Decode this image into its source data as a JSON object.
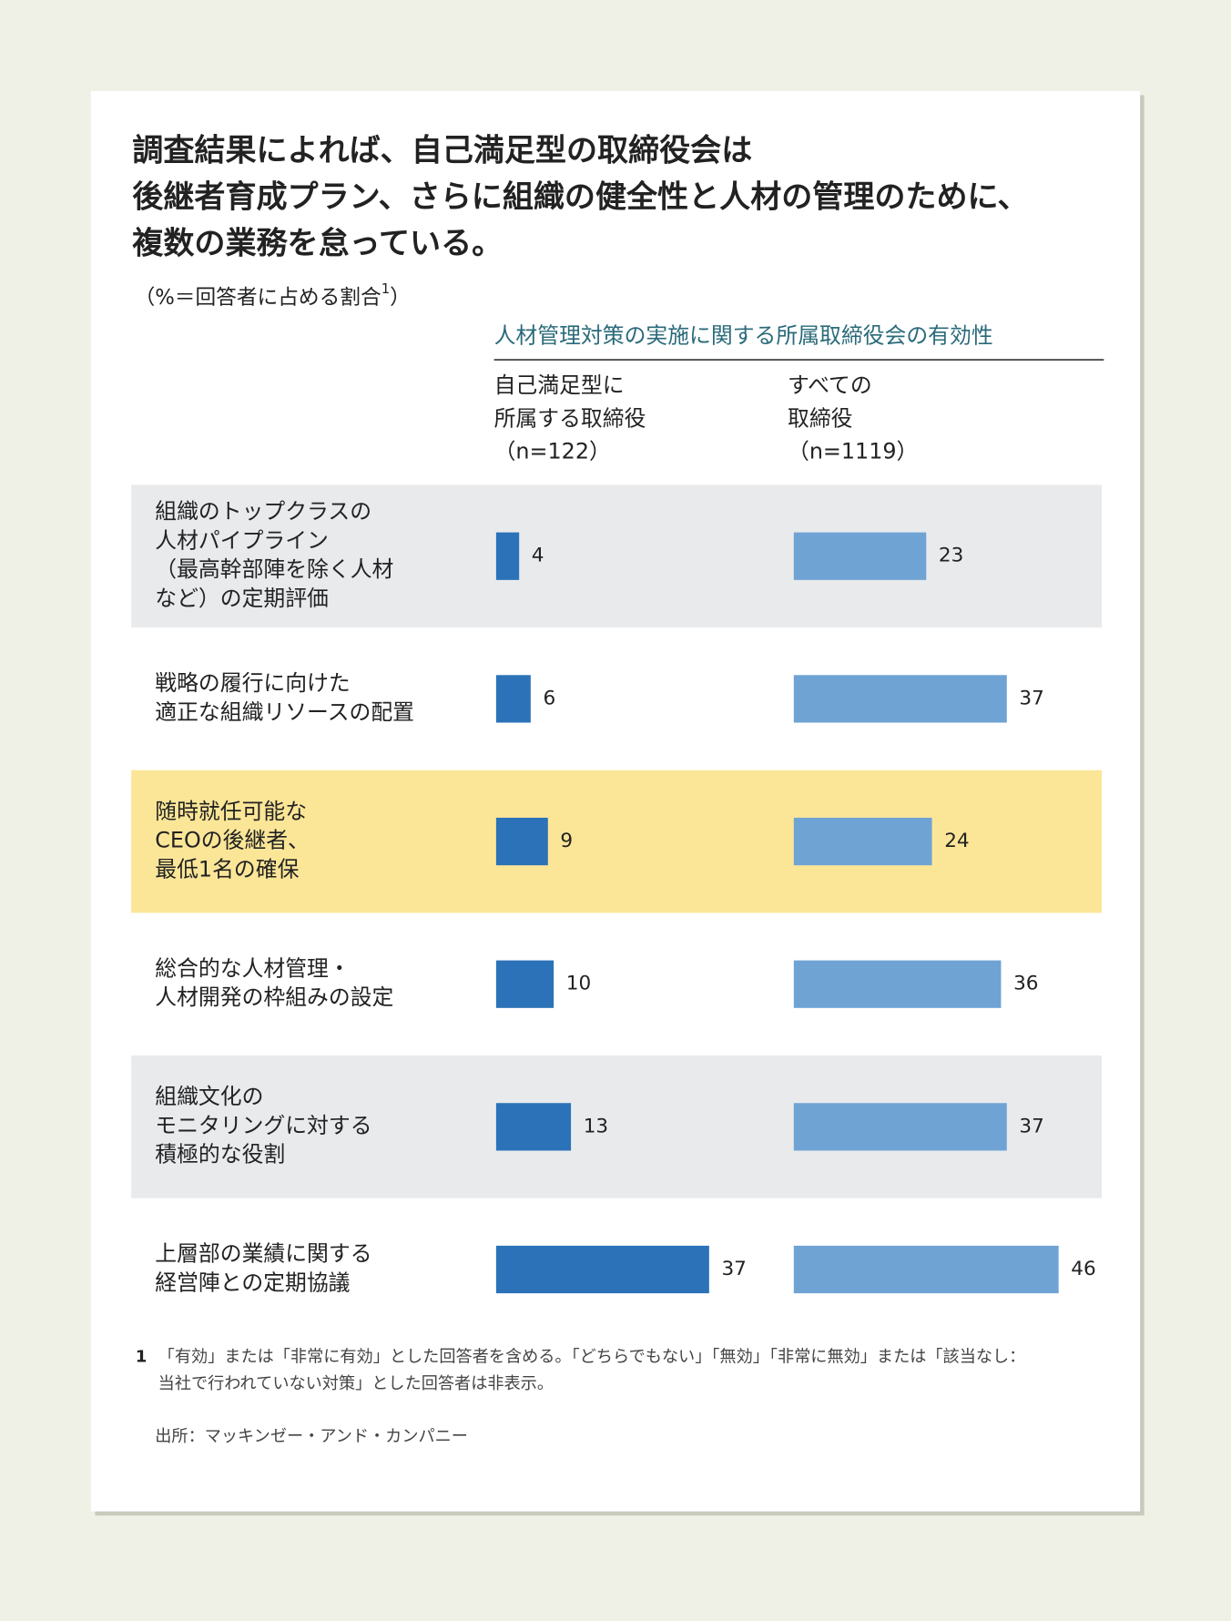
{
  "chart_data": {
    "type": "bar",
    "title": [
      "調査結果によれば、自己満足型の取締役会は",
      "後継者育成プラン、さらに組織の健全性と人材の管理のために、",
      "複数の業務を怠っている。"
    ],
    "subtitle": {
      "text": "（%＝回答者に占める割合",
      "note_ref": "1",
      "end": "）"
    },
    "group_title": "人材管理対策の実施に関する所属取締役会の有効性",
    "categories": [
      [
        "組織のトップクラスの",
        "人材パイプライン",
        "（最高幹部陣を除く人材",
        "など）の定期評価"
      ],
      [
        "戦略の履行に向けた",
        "適正な組織リソースの配置"
      ],
      [
        "随時就任可能な",
        "CEOの後継者、",
        "最低1名の確保"
      ],
      [
        "総合的な人材管理・",
        "人材開発の枠組みの設定"
      ],
      [
        "組織文化の",
        "モニタリングに対する",
        "積極的な役割"
      ],
      [
        "上層部の業績に関する",
        "経営陣との定期協議"
      ]
    ],
    "highlight": 2,
    "series": [
      {
        "name": [
          "自己満足型に",
          "所属する取締役",
          "（n=122）"
        ],
        "color": "#2b72b8",
        "values": [
          4,
          6,
          9,
          10,
          13,
          37
        ]
      },
      {
        "name": [
          "すべての",
          "取締役",
          "（n=1119）"
        ],
        "color": "#6fa3d4",
        "values": [
          23,
          37,
          24,
          36,
          37,
          46
        ]
      }
    ],
    "footnote": {
      "marker": "1",
      "text": [
        "「有効」または「非常に有効」とした回答者を含める。「どちらでもない」「無効」「非常に無効」または「該当なし：",
        "当社で行われていない対策」とした回答者は非表示。"
      ]
    },
    "source": "出所：マッキンゼー・アンド・カンパニー"
  }
}
